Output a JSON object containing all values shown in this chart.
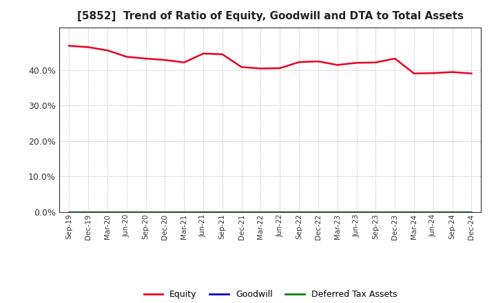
{
  "title": "[5852]  Trend of Ratio of Equity, Goodwill and DTA to Total Assets",
  "x_labels": [
    "Sep-19",
    "Dec-19",
    "Mar-20",
    "Jun-20",
    "Sep-20",
    "Dec-20",
    "Mar-21",
    "Jun-21",
    "Sep-21",
    "Dec-21",
    "Mar-22",
    "Jun-22",
    "Sep-22",
    "Dec-22",
    "Mar-23",
    "Jun-23",
    "Sep-23",
    "Dec-23",
    "Mar-24",
    "Jun-24",
    "Sep-24",
    "Dec-24"
  ],
  "equity": [
    0.468,
    0.464,
    0.455,
    0.437,
    0.432,
    0.428,
    0.421,
    0.446,
    0.444,
    0.408,
    0.404,
    0.405,
    0.422,
    0.424,
    0.414,
    0.42,
    0.421,
    0.432,
    0.39,
    0.391,
    0.394,
    0.39
  ],
  "goodwill": [
    0.0,
    0.0,
    0.0,
    0.0,
    0.0,
    0.0,
    0.0,
    0.0,
    0.0,
    0.0,
    0.0,
    0.0,
    0.0,
    0.0,
    0.0,
    0.0,
    0.0,
    0.0,
    0.0,
    0.0,
    0.0,
    0.0
  ],
  "dta": [
    0.0,
    0.0,
    0.0,
    0.0,
    0.0,
    0.0,
    0.0,
    0.0,
    0.0,
    0.0,
    0.0,
    0.0,
    0.0,
    0.0,
    0.0,
    0.0,
    0.0,
    0.0,
    0.0,
    0.0,
    0.0,
    0.0
  ],
  "equity_color": "#e8001c",
  "goodwill_color": "#0000cc",
  "dta_color": "#008000",
  "ylim": [
    0.0,
    0.52
  ],
  "yticks": [
    0.0,
    0.1,
    0.2,
    0.3,
    0.4
  ],
  "background_color": "#ffffff",
  "grid_color": "#aaaaaa",
  "title_fontsize": 11,
  "legend_labels": [
    "Equity",
    "Goodwill",
    "Deferred Tax Assets"
  ]
}
